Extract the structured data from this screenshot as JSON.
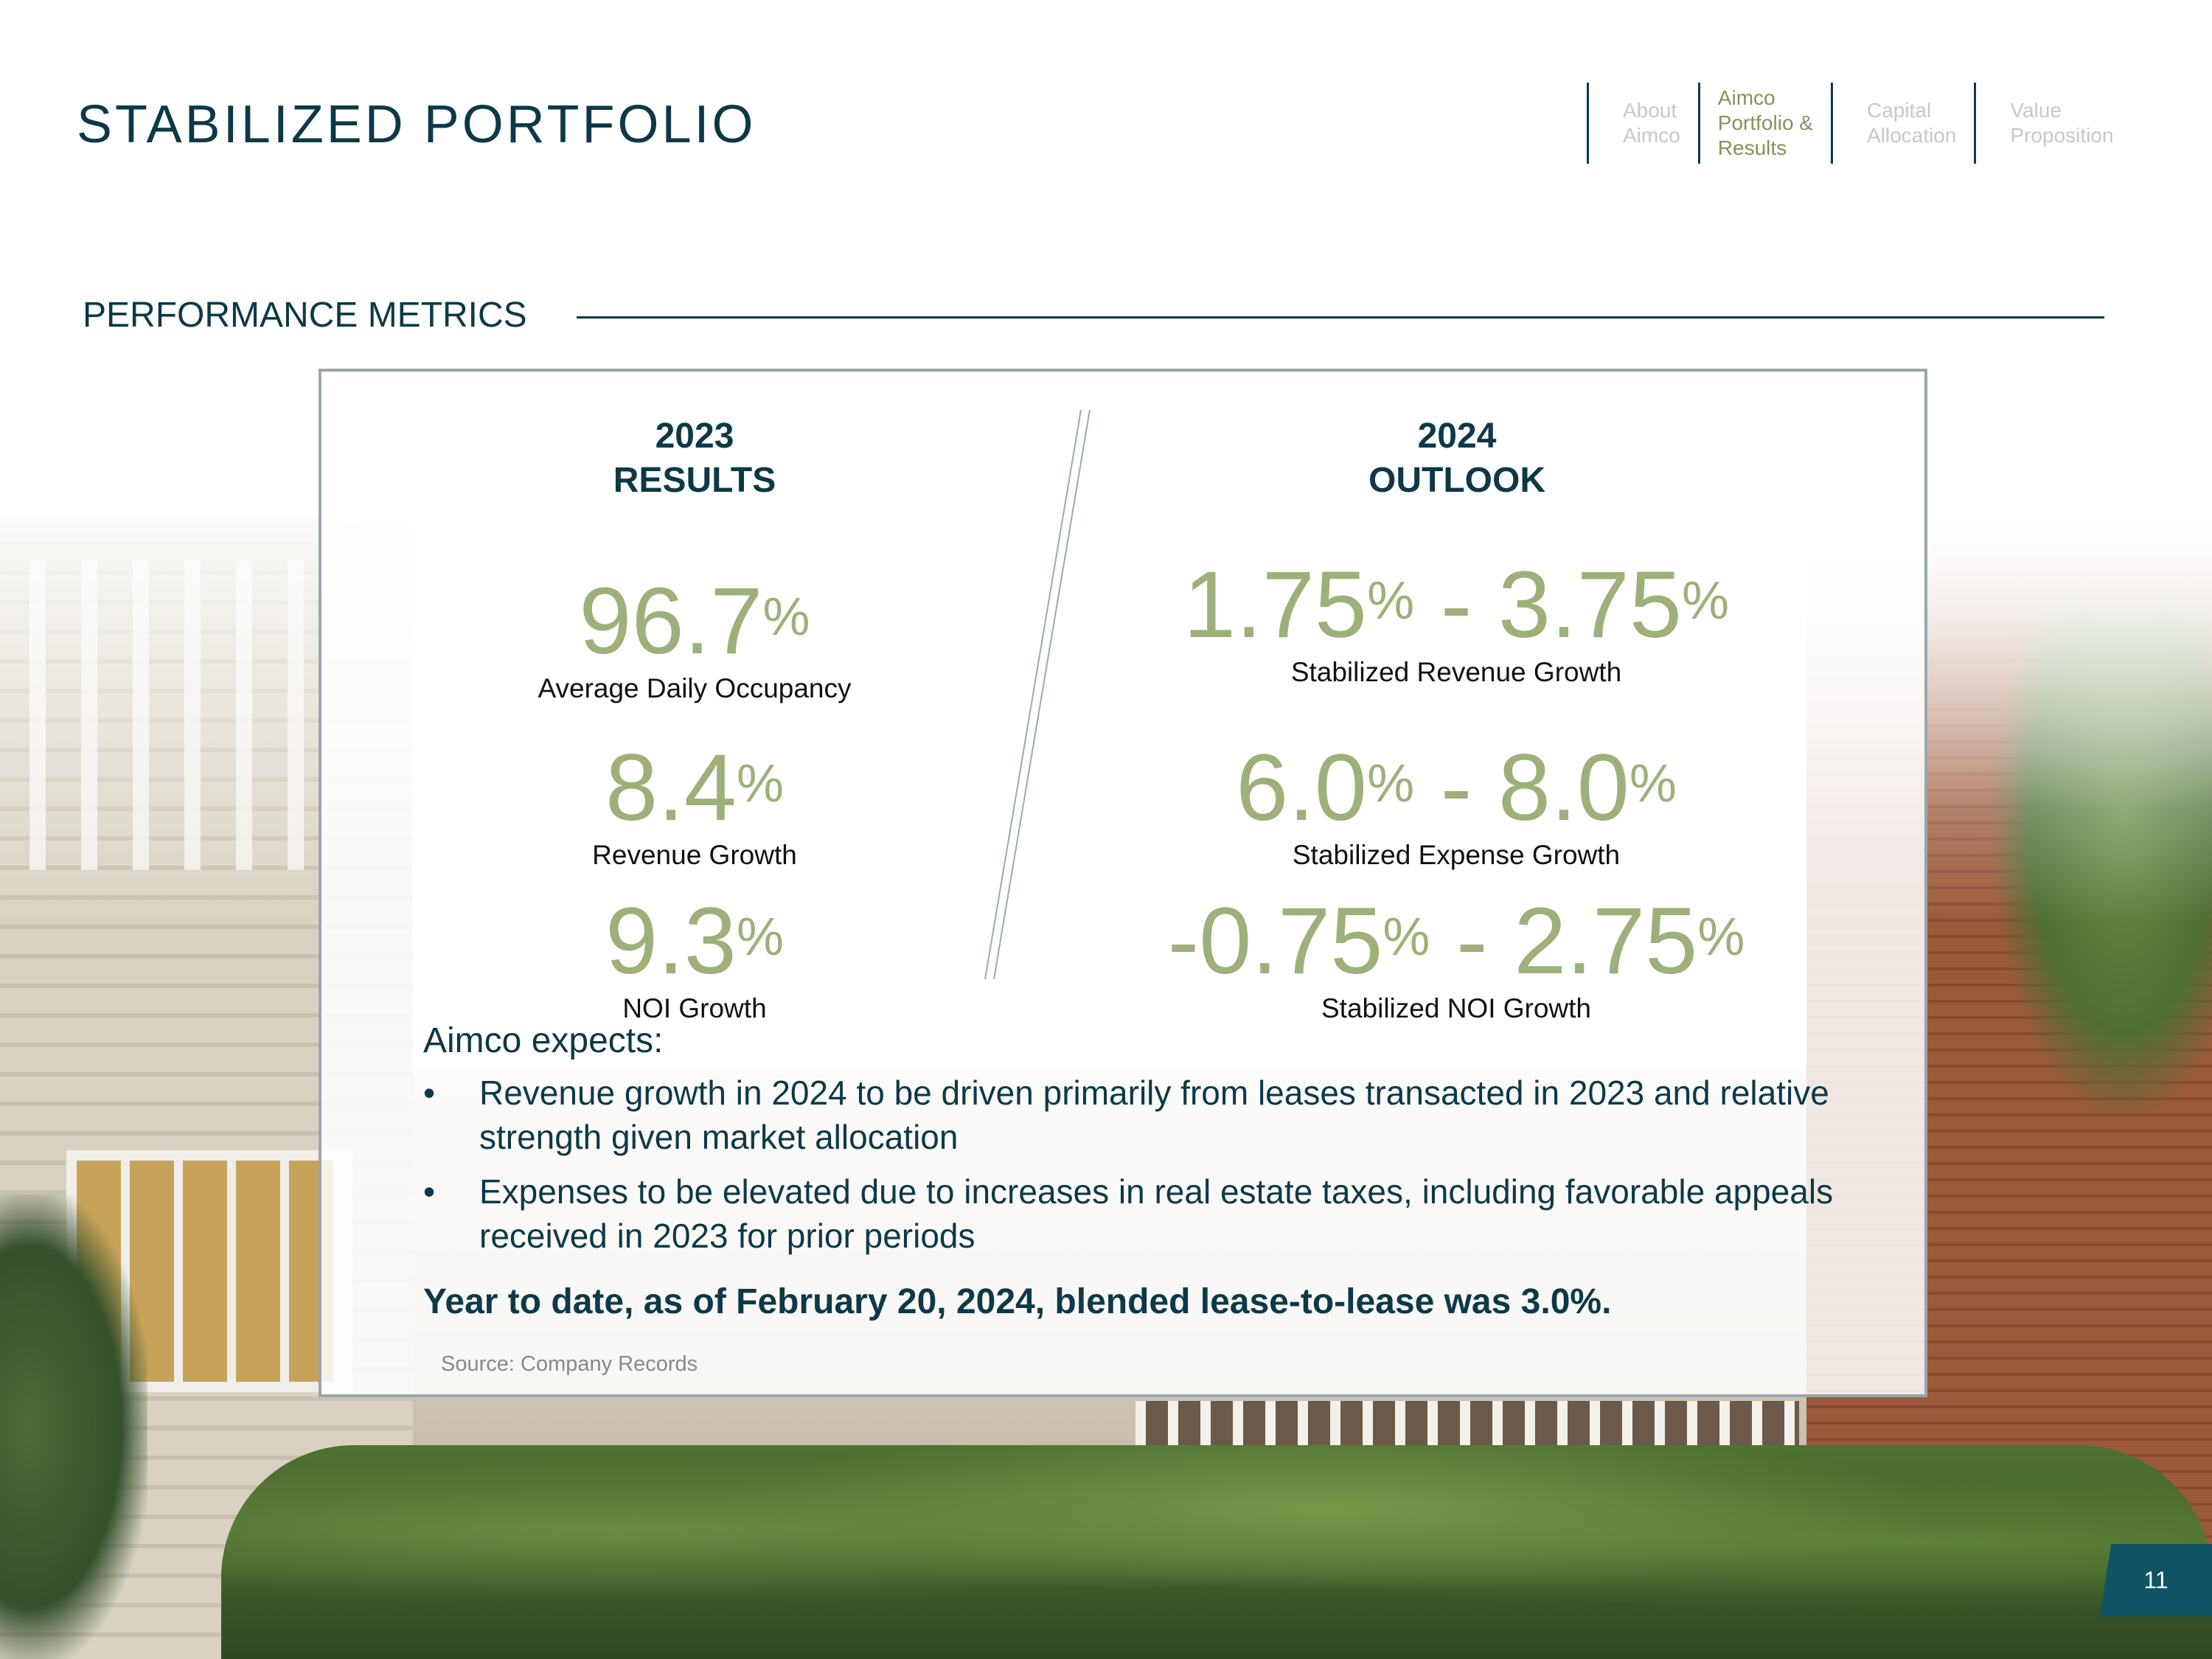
{
  "header": {
    "title": "STABILIZED PORTFOLIO",
    "nav": [
      {
        "label": "About\nAimco",
        "active": false
      },
      {
        "label": "Aimco\nPortfolio &\nResults",
        "active": true
      },
      {
        "label": "Capital\nAllocation",
        "active": false
      },
      {
        "label": "Value\nProposition",
        "active": false
      }
    ]
  },
  "section": {
    "title": "PERFORMANCE METRICS"
  },
  "results": {
    "year": "2023",
    "heading": "RESULTS",
    "metrics": [
      {
        "value": "96.7",
        "unit": "%",
        "label": "Average Daily Occupancy"
      },
      {
        "value": "8.4",
        "unit": "%",
        "label": "Revenue Growth"
      },
      {
        "value": "9.3",
        "unit": "%",
        "label": "NOI Growth"
      }
    ]
  },
  "outlook": {
    "year": "2024",
    "heading": "OUTLOOK",
    "metrics": [
      {
        "low": "1.75",
        "high": "3.75",
        "unit": "%",
        "separator": " - ",
        "label": "Stabilized Revenue Growth"
      },
      {
        "low": "6.0",
        "high": "8.0",
        "unit": "%",
        "separator": " - ",
        "label": "Stabilized Expense Growth"
      },
      {
        "low": "-0.75",
        "high": "2.75",
        "unit": "%",
        "separator": " - ",
        "label": "Stabilized NOI Growth"
      }
    ]
  },
  "commentary": {
    "heading": "Aimco expects:",
    "bullet_symbol": "•",
    "bullets": [
      "Revenue growth in 2024 to be driven primarily from leases transacted in 2023 and relative strength given market allocation",
      "Expenses to be elevated due to increases in real estate taxes, including favorable appeals received in 2023 for prior periods"
    ],
    "highlight": "Year to date, as of February 20, 2024, blended lease-to-lease was 3.0%.",
    "source": "Source: Company Records"
  },
  "footer": {
    "page_number": "11"
  },
  "colors": {
    "navy": "#0d3947",
    "metric_green": "#9db07a",
    "nav_active": "#7f9657",
    "nav_inactive": "#c8c8c8",
    "page_tab": "#0f5365"
  }
}
